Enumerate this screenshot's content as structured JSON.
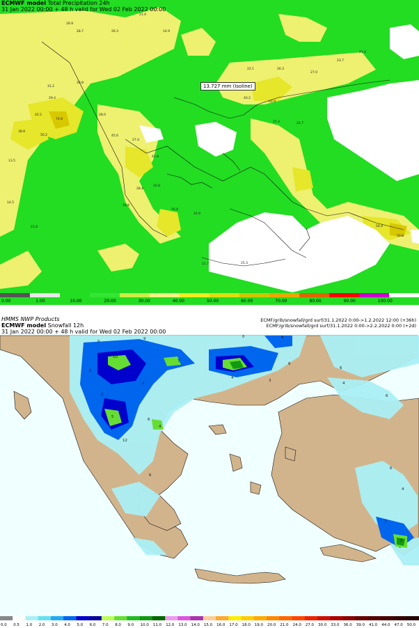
{
  "top_panel": {
    "model": "ECMWF model",
    "product": "Total Precipitation 24h",
    "valid": "31 Jan 2022 00:00 + 48 h valid for Wed 02 Feb 2022 00:00",
    "isoline_label": "13.727 mm (Isoline)",
    "colorbar_labels": [
      "0.00",
      "1.00",
      "10.00",
      "20.00",
      "30.00",
      "40.00",
      "50.00",
      "60.00",
      "70.00",
      "80.00",
      "90.00",
      "100.00"
    ],
    "colorbar_colors": [
      "#555555",
      "#e8e8e8",
      "#22dd22",
      "#33e633",
      "#ccee44",
      "#f5f580",
      "#eeee22",
      "#dddd11",
      "#ccc800",
      "#e8a800",
      "#dd6600",
      "#ff0000",
      "#cc00cc",
      "#ffffff"
    ],
    "sample_values": [
      "29.9",
      "28.7",
      "26.3",
      "14.9",
      "21.0",
      "31.2",
      "20.8",
      "42.5",
      "38.8",
      "29.4",
      "50.2",
      "74.8",
      "28.0",
      "45.6",
      "27.4",
      "41.8",
      "28.4",
      "56.8",
      "13.5",
      "22.1",
      "26.3",
      "23.7",
      "25.4",
      "24.7",
      "14.5",
      "18.8",
      "22.8",
      "16.9",
      "21.7",
      "25.3",
      "40.2",
      "63.9",
      "21.0",
      "27.0",
      "20.8",
      "56.4",
      "50.6"
    ]
  },
  "bottom_panel": {
    "org": "HMMS NWP Products",
    "model": "ECMWF model",
    "product": "Snowfall 12h",
    "valid": "31 Jan 2022 00:00 + 48 h valid for Wed 02 Feb 2022 00:00",
    "file_1": "ECMF/grib/snowfall/grd surf/31.1.2022 0:00->1.2.2022 12:00 (+36h)",
    "file_2": "ECMF/grib/snowfall/grd surf/31.1.2022 0:00->2.2.2022 0:00 (+2d)",
    "colorbar_labels": [
      "0.0",
      "0.5",
      "1.0",
      "2.0",
      "3.0",
      "4.0",
      "5.0",
      "6.0",
      "7.0",
      "8.0",
      "9.0",
      "10.0",
      "11.0",
      "12.0",
      "13.0",
      "14.0",
      "15.0",
      "16.0",
      "17.0",
      "18.0",
      "19.0",
      "20.0",
      "21.0",
      "24.0",
      "27.0",
      "30.0",
      "33.0",
      "36.0",
      "39.0",
      "41.0",
      "44.0",
      "47.0",
      "50.0"
    ],
    "colorbar_colors": [
      "#888888",
      "#ffffff",
      "#aaf0f5",
      "#66e0f0",
      "#22aaf0",
      "#0066ee",
      "#0000cc",
      "#000099",
      "#bbff55",
      "#66dd33",
      "#22bb22",
      "#119911",
      "#006600",
      "#ee99ee",
      "#dd55dd",
      "#aa33aa",
      "#ffcc99",
      "#ffaa33",
      "#ffee00",
      "#ffcc00",
      "#ffaa00",
      "#ff8800",
      "#ff6600",
      "#ff4400",
      "#ee2200",
      "#cc1100",
      "#aa0000",
      "#880000",
      "#660000",
      "#550000",
      "#440000",
      "#330000",
      "#220000"
    ],
    "sample_values": [
      "0",
      "0",
      "8",
      "9",
      "10",
      "7",
      "6",
      "5",
      "2",
      "2",
      "8",
      "6",
      "4",
      "3",
      "6",
      "4",
      "12",
      "5",
      "6",
      "4",
      "6",
      "6",
      "4",
      "3",
      "5",
      "6"
    ]
  }
}
